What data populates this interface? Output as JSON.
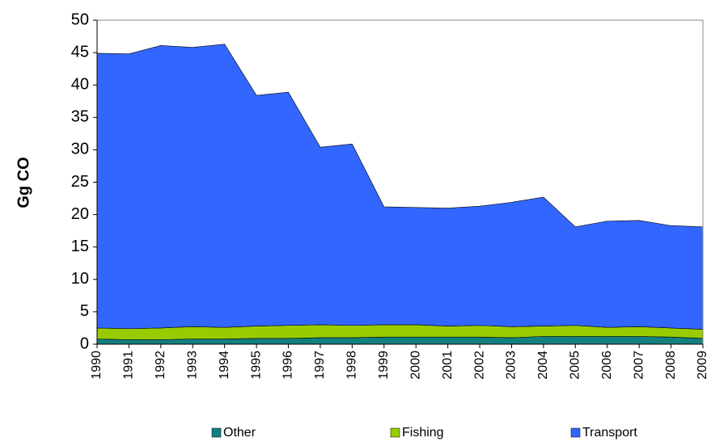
{
  "chart_data": {
    "type": "stacked_area",
    "y_label": "Gg CO",
    "categories": [
      "1990",
      "1991",
      "1992",
      "1993",
      "1994",
      "1995",
      "1996",
      "1997",
      "1998",
      "1999",
      "2000",
      "2001",
      "2002",
      "2003",
      "2004",
      "2005",
      "2006",
      "2007",
      "2008",
      "2009"
    ],
    "series": [
      {
        "name": "Other",
        "color": "#138080",
        "values": [
          0.8,
          0.7,
          0.7,
          0.8,
          0.8,
          0.9,
          0.9,
          1.0,
          1.0,
          1.1,
          1.1,
          1.1,
          1.1,
          1.0,
          1.2,
          1.2,
          1.2,
          1.2,
          1.1,
          0.9
        ]
      },
      {
        "name": "Fishing",
        "color": "#99cc00",
        "values": [
          1.7,
          1.7,
          1.8,
          1.9,
          1.8,
          1.9,
          2.0,
          2.0,
          1.9,
          1.9,
          1.9,
          1.7,
          1.8,
          1.7,
          1.6,
          1.7,
          1.4,
          1.5,
          1.4,
          1.4
        ]
      },
      {
        "name": "Transport",
        "color": "#3366ff",
        "values": [
          42.4,
          42.4,
          43.6,
          43.1,
          43.7,
          35.6,
          36.0,
          27.4,
          28.0,
          18.2,
          18.1,
          18.2,
          18.4,
          19.2,
          19.9,
          15.2,
          16.4,
          16.4,
          15.8,
          15.8
        ]
      }
    ],
    "ylim": [
      0,
      50
    ],
    "yticks": [
      0,
      5,
      10,
      15,
      20,
      25,
      30,
      35,
      40,
      45,
      50
    ],
    "legend": "bottom"
  }
}
